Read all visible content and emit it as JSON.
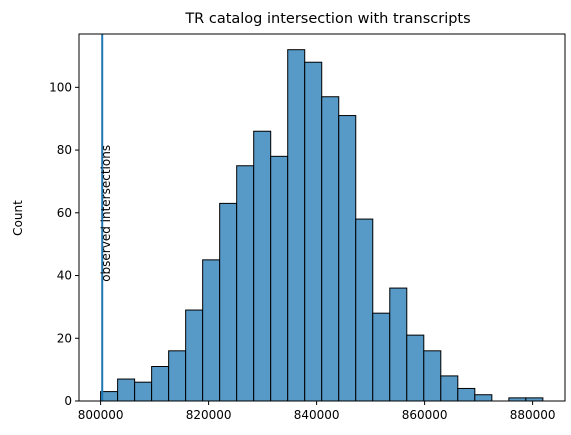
{
  "chart_data": {
    "type": "bar",
    "subtype": "histogram",
    "title": "TR catalog intersection with transcripts",
    "xlabel": "",
    "ylabel": "Count",
    "xlim": [
      796000,
      886000
    ],
    "ylim": [
      0,
      117
    ],
    "bin_width": 3150,
    "bin_start": 800000,
    "counts": [
      3,
      7,
      6,
      11,
      16,
      29,
      45,
      63,
      75,
      86,
      78,
      112,
      108,
      97,
      91,
      58,
      28,
      36,
      21,
      16,
      8,
      4,
      2,
      0,
      1,
      1
    ],
    "x_ticks": [
      800000,
      820000,
      840000,
      860000,
      880000
    ],
    "y_ticks": [
      0,
      20,
      40,
      60,
      80,
      100
    ],
    "bar_color": "#5799c7",
    "bar_edge_color": "#000000",
    "observed_line": {
      "x": 800300,
      "label": "observed intersections",
      "color": "#1f77b4"
    },
    "grid": false,
    "legend": "none"
  }
}
